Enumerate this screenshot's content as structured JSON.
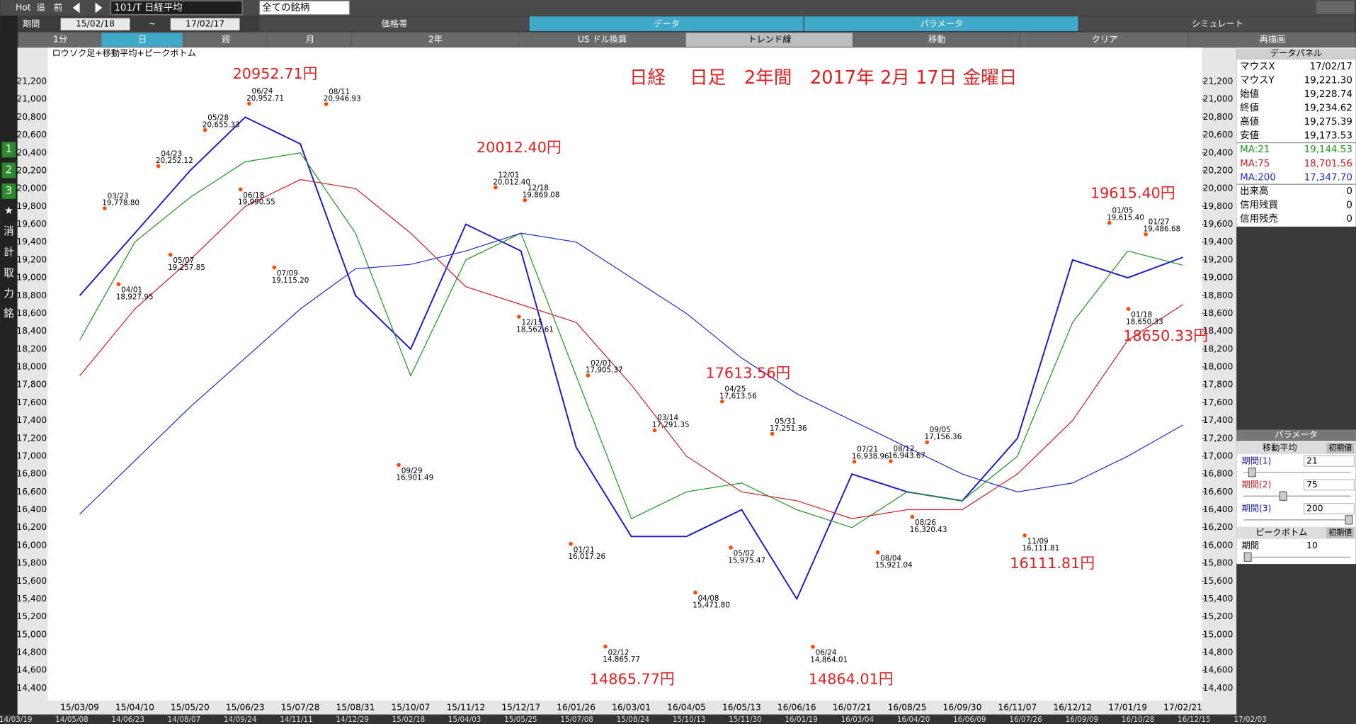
{
  "toolbar": {
    "hot": "Hot",
    "back": "追",
    "prev": "前",
    "symbol": "101/T 日経平均",
    "universe": "全ての銘柄",
    "period_label": "期間",
    "from": "15/02/18",
    "tilde": "~",
    "to": "17/02/17",
    "tabs": [
      "価格帯",
      "データ",
      "パラメータ",
      "シミュレート"
    ],
    "buttons": [
      "1分",
      "日",
      "週",
      "月",
      "2年",
      "US ドル換算",
      "トレンド線",
      "移動",
      "クリア",
      "再描画"
    ]
  },
  "side_icons": [
    "1",
    "2",
    "3",
    "★",
    "消",
    "計",
    "取",
    "力",
    "銘"
  ],
  "chart_data": {
    "type": "line",
    "title": "日経　 日足　2年間　2017年 2月 17日 金曜日",
    "subtitle": "ロウソク足+移動平均+ピークボトム",
    "categories": [
      "15/03/09",
      "15/04/10",
      "15/05/20",
      "15/06/23",
      "15/07/28",
      "15/08/31",
      "15/10/07",
      "15/11/12",
      "15/12/17",
      "16/01/26",
      "16/03/01",
      "16/04/05",
      "16/05/13",
      "16/06/16",
      "16/07/21",
      "16/08/25",
      "16/09/30",
      "16/11/07",
      "16/12/12",
      "17/01/19",
      "17/02/21"
    ],
    "series": [
      {
        "color": "#1a1ac8",
        "values": [
          18800,
          19500,
          20200,
          20800,
          20500,
          18800,
          18200,
          19600,
          19300,
          17100,
          16100,
          16100,
          16400,
          15400,
          16800,
          16600,
          16500,
          17200,
          19200,
          19000,
          19230
        ]
      },
      {
        "color": "#1a9a1a",
        "values": [
          18300,
          19400,
          19900,
          20300,
          20400,
          19500,
          17900,
          19200,
          19500,
          17900,
          16300,
          16600,
          16700,
          16400,
          16200,
          16600,
          16500,
          17000,
          18500,
          19300,
          19140
        ]
      },
      {
        "color": "#d42020",
        "values": [
          17900,
          18650,
          19200,
          19800,
          20100,
          20000,
          19500,
          18900,
          18700,
          18500,
          17800,
          17000,
          16600,
          16500,
          16300,
          16400,
          16400,
          16800,
          17400,
          18300,
          18700
        ]
      },
      {
        "color": "#2030d0",
        "values": [
          16350,
          16950,
          17550,
          18100,
          18650,
          19100,
          19150,
          19300,
          19500,
          19400,
          19000,
          18600,
          18100,
          17700,
          17400,
          17100,
          16800,
          16600,
          16700,
          17000,
          17350
        ]
      }
    ],
    "ylim": [
      14260,
      21580
    ],
    "yticks": [
      {
        "value": 14400,
        "label": "14,400"
      },
      {
        "value": 14600,
        "label": "14,600"
      },
      {
        "value": 14800,
        "label": "14,800"
      },
      {
        "value": 15000,
        "label": "15,000"
      },
      {
        "value": 15200,
        "label": "15,200"
      },
      {
        "value": 15400,
        "label": "15,400"
      },
      {
        "value": 15600,
        "label": "15,600"
      },
      {
        "value": 15800,
        "label": "15,800"
      },
      {
        "value": 16000,
        "label": "16,000"
      },
      {
        "value": 16200,
        "label": "16,200"
      },
      {
        "value": 16400,
        "label": "16,400"
      },
      {
        "value": 16600,
        "label": "16,600"
      },
      {
        "value": 16800,
        "label": "16,800"
      },
      {
        "value": 17000,
        "label": "17,000"
      },
      {
        "value": 17200,
        "label": "17,200"
      },
      {
        "value": 17400,
        "label": "17,400"
      },
      {
        "value": 17600,
        "label": "17,600"
      },
      {
        "value": 17800,
        "label": "17,800"
      },
      {
        "value": 18000,
        "label": "18,000"
      },
      {
        "value": 18200,
        "label": "18,200"
      },
      {
        "value": 18400,
        "label": "18,400"
      },
      {
        "value": 18600,
        "label": "18,600"
      },
      {
        "value": 18800,
        "label": "18,800"
      },
      {
        "value": 19000,
        "label": "19,000"
      },
      {
        "value": 19200,
        "label": "19,200"
      },
      {
        "value": 19400,
        "label": "19,400"
      },
      {
        "value": 19600,
        "label": "19,600"
      },
      {
        "value": 19800,
        "label": "19,800"
      },
      {
        "value": 20000,
        "label": "20,000"
      },
      {
        "value": 20200,
        "label": "20,200"
      },
      {
        "value": 20400,
        "label": "20,400"
      },
      {
        "value": 20600,
        "label": "20,600"
      },
      {
        "value": 20800,
        "label": "20,800"
      },
      {
        "value": 21000,
        "label": "21,000"
      },
      {
        "value": 21200,
        "label": "21,200"
      }
    ],
    "grid": false,
    "peaks": [
      {
        "date": "06/24",
        "value": 20952.71,
        "value_label": "20,952.71"
      },
      {
        "date": "08/11",
        "value": 20946.93,
        "value_label": "20,946.93"
      },
      {
        "date": "05/28",
        "value": 20655.33,
        "value_label": "20,655.33"
      },
      {
        "date": "04/23",
        "value": 20252.12,
        "value_label": "20,252.12"
      },
      {
        "date": "03/23",
        "value": 19778.8,
        "value_label": "19,778.80"
      },
      {
        "date": "06/18",
        "value": 19990.55,
        "value_label": "19,990.55"
      },
      {
        "date": "05/07",
        "value": 19257.85,
        "value_label": "19,257.85"
      },
      {
        "date": "04/01",
        "value": 18927.95,
        "value_label": "18,927.95"
      },
      {
        "date": "07/09",
        "value": 19115.2,
        "value_label": "19,115.20"
      },
      {
        "date": "09/29",
        "value": 16901.49,
        "value_label": "16,901.49"
      },
      {
        "date": "12/01",
        "value": 20012.4,
        "value_label": "20,012.40"
      },
      {
        "date": "12/18",
        "value": 19869.08,
        "value_label": "19,869.08"
      },
      {
        "date": "12/15",
        "value": 18562.61,
        "value_label": "18,562.61"
      },
      {
        "date": "02/01",
        "value": 17905.37,
        "value_label": "17,905.37"
      },
      {
        "date": "01/21",
        "value": 16017.26,
        "value_label": "16,017.26"
      },
      {
        "date": "02/12",
        "value": 14865.77,
        "value_label": "14,865.77"
      },
      {
        "date": "03/14",
        "value": 17291.35,
        "value_label": "17,291.35"
      },
      {
        "date": "04/08",
        "value": 15471.8,
        "value_label": "15,471.80"
      },
      {
        "date": "04/25",
        "value": 17613.56,
        "value_label": "17,613.56"
      },
      {
        "date": "05/02",
        "value": 15975.47,
        "value_label": "15,975.47"
      },
      {
        "date": "05/31",
        "value": 17251.36,
        "value_label": "17,251.36"
      },
      {
        "date": "06/24",
        "value": 14864.01,
        "value_label": "14,864.01"
      },
      {
        "date": "07/21",
        "value": 16938.96,
        "value_label": "16,938.96"
      },
      {
        "date": "08/12",
        "value": 16943.67,
        "value_label": "16,943.67"
      },
      {
        "date": "08/04",
        "value": 15921.04,
        "value_label": "15,921.04"
      },
      {
        "date": "08/26",
        "value": 16320.43,
        "value_label": "16,320.43"
      },
      {
        "date": "09/05",
        "value": 17156.36,
        "value_label": "17,156.36"
      },
      {
        "date": "11/09",
        "value": 16111.81,
        "value_label": "16,111.81"
      },
      {
        "date": "01/05",
        "value": 19615.4,
        "value_label": "19,615.40"
      },
      {
        "date": "01/27",
        "value": 19486.68,
        "value_label": "19,486.68"
      },
      {
        "date": "01/18",
        "value": 18650.33,
        "value_label": "18,650.33"
      }
    ],
    "annotations": [
      "20952.71円",
      "20012.40円",
      "17613.56円",
      "14865.77円",
      "14864.01円",
      "16111.81円",
      "19615.40円",
      "18650.33円"
    ]
  },
  "data_panel": {
    "title": "データパネル",
    "rows": [
      [
        "マウスX",
        "17/02/17"
      ],
      [
        "マウスY",
        "19,221.30"
      ],
      [
        "始値",
        "19,228.74"
      ],
      [
        "終値",
        "19,234.62"
      ],
      [
        "高値",
        "19,275.39"
      ],
      [
        "安値",
        "19,173.53"
      ],
      [
        "MA:21",
        "19,144.53"
      ],
      [
        "MA:75",
        "18,701.56"
      ],
      [
        "MA:200",
        "17,347.70"
      ],
      [
        "出来高",
        "0"
      ],
      [
        "信用残買",
        "0"
      ],
      [
        "信用残売",
        "0"
      ]
    ]
  },
  "param_panel": {
    "title": "パラメータ",
    "ma_title": "移動平均",
    "reset": "初期値",
    "rows": [
      [
        "期間(1)",
        "21"
      ],
      [
        "期間(2)",
        "75"
      ],
      [
        "期間(3)",
        "200"
      ]
    ],
    "peak_title": "ピークボトム",
    "peak_reset": "初期値",
    "peak_rows": [
      [
        "期間",
        "10"
      ]
    ]
  },
  "overview_dates": [
    "14/03/19",
    "14/05/08",
    "14/06/23",
    "14/08/07",
    "14/09/24",
    "14/11/11",
    "14/12/29",
    "15/02/18",
    "15/04/03",
    "15/05/25",
    "15/07/08",
    "15/08/24",
    "15/10/13",
    "15/11/30",
    "16/01/19",
    "16/03/04",
    "16/04/20",
    "16/06/09",
    "16/07/26",
    "16/09/09",
    "16/10/28",
    "16/12/15",
    "17/02/03"
  ]
}
